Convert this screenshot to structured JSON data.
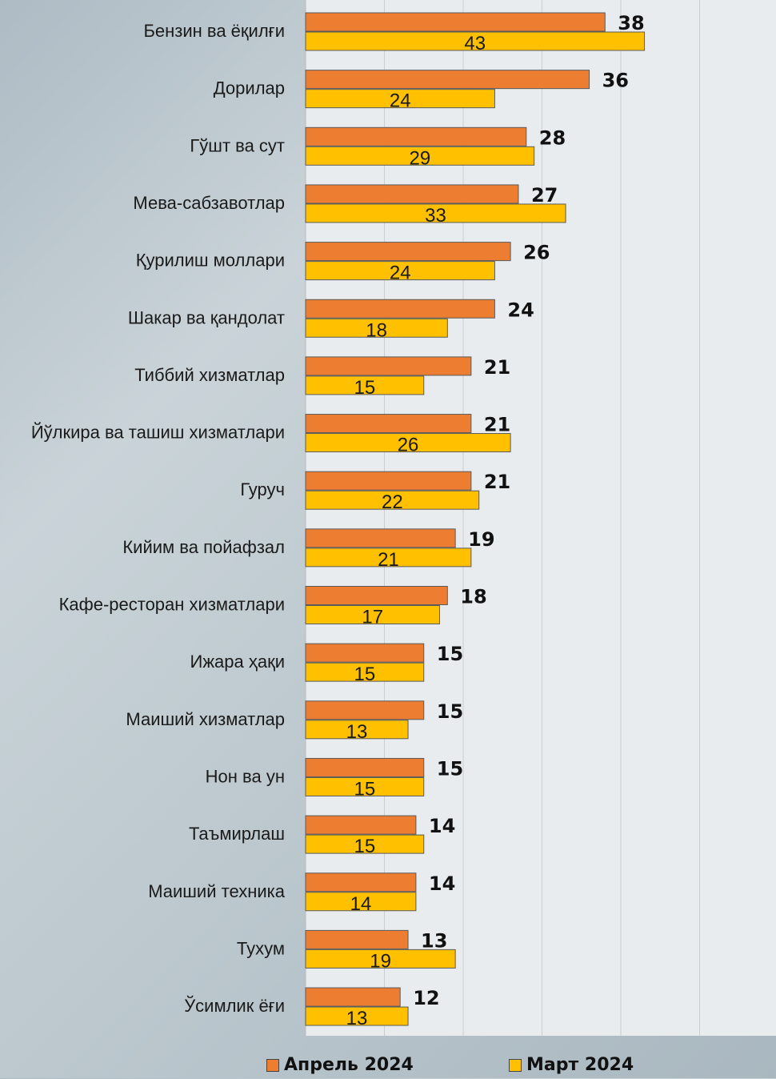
{
  "chart_data": {
    "type": "bar",
    "orientation": "horizontal",
    "categories": [
      "Бензин ва ёқилғи",
      "Дорилар",
      "Гўшт ва сут",
      "Мева-сабзавотлар",
      "Қурилиш моллари",
      "Шакар ва қандолат",
      "Тиббий хизматлар",
      "Йўлкира ва ташиш хизматлари",
      "Гуруч",
      "Кийим ва пойафзал",
      "Кафе-ресторан хизматлари",
      "Ижара ҳақи",
      "Маиший хизматлар",
      "Нон ва ун",
      "Таъмирлаш",
      "Маиший техника",
      "Тухум",
      "Ўсимлик ёғи"
    ],
    "series": [
      {
        "name": "Апрель 2024",
        "color": "#ED7D31",
        "values": [
          38,
          36,
          28,
          27,
          26,
          24,
          21,
          21,
          21,
          19,
          18,
          15,
          15,
          15,
          14,
          14,
          13,
          12
        ]
      },
      {
        "name": "Март 2024",
        "color": "#FFC000",
        "values": [
          43,
          24,
          29,
          33,
          24,
          18,
          15,
          26,
          22,
          21,
          17,
          15,
          13,
          15,
          15,
          14,
          19,
          13
        ]
      }
    ],
    "xlim": [
      0,
      60
    ],
    "grid": true,
    "legend_position": "bottom"
  },
  "legend": {
    "items": [
      {
        "label": "Апрель 2024",
        "color": "#ED7D31"
      },
      {
        "label": "Март 2024",
        "color": "#FFC000"
      }
    ]
  }
}
